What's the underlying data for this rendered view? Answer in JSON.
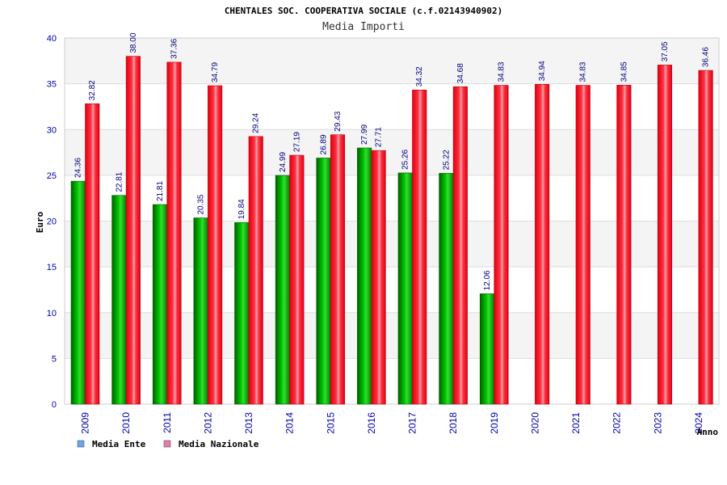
{
  "chart_data": {
    "type": "bar",
    "title": "CHENTALES SOC. COOPERATIVA SOCIALE (c.f.02143940902)",
    "subtitle": "Media Importi",
    "xlabel": "Anno",
    "ylabel": "Euro",
    "ylim": [
      0,
      40
    ],
    "yticks": [
      0,
      5,
      10,
      15,
      20,
      25,
      30,
      35,
      40
    ],
    "grid": true,
    "legend_position": "bottom-left",
    "categories": [
      "2009",
      "2010",
      "2011",
      "2012",
      "2013",
      "2014",
      "2015",
      "2016",
      "2017",
      "2018",
      "2019",
      "2020",
      "2021",
      "2022",
      "2023",
      "2024"
    ],
    "series": [
      {
        "name": "Media Ente",
        "legend_color": "#6aa6e8",
        "bar_color": "#00b000",
        "values": [
          24.36,
          22.81,
          21.81,
          20.35,
          19.84,
          24.99,
          26.89,
          27.99,
          25.26,
          25.22,
          12.06,
          null,
          null,
          null,
          null,
          null
        ],
        "labels": [
          "24.36",
          "22.81",
          "21.81",
          "20.35",
          "19.84",
          "24.99",
          "26.89",
          "27.99",
          "25.26",
          "25.22",
          "12.06",
          "",
          "",
          "",
          "",
          ""
        ]
      },
      {
        "name": "Media Nazionale",
        "legend_color": "#e87ab0",
        "bar_color": "#e80010",
        "values": [
          32.82,
          38.0,
          37.36,
          34.79,
          29.24,
          27.19,
          29.43,
          27.71,
          34.32,
          34.68,
          34.83,
          34.94,
          34.83,
          34.85,
          37.05,
          36.46
        ],
        "labels": [
          "32.82",
          "38.00",
          "37.36",
          "34.79",
          "29.24",
          "27.19",
          "29.43",
          "27.71",
          "34.32",
          "34.68",
          "34.83",
          "34.94",
          "34.83",
          "34.85",
          "37.05",
          "36.46"
        ]
      }
    ]
  }
}
